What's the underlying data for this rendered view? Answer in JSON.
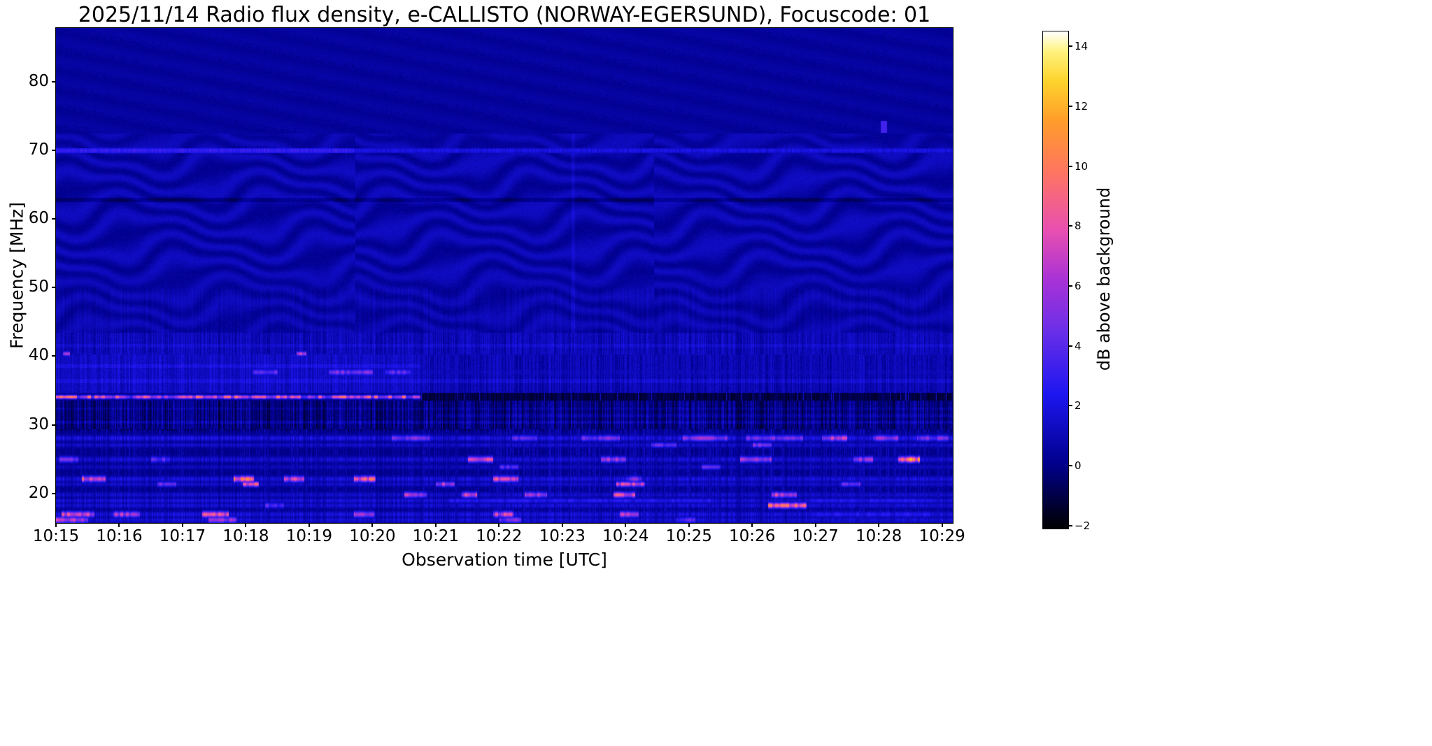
{
  "chart_data": {
    "type": "heatmap",
    "title": "2025/11/14  Radio flux density, e-CALLISTO (NORWAY-EGERSUND), Focuscode: 01",
    "xlabel": "Observation time [UTC]",
    "ylabel": "Frequency [MHz]",
    "colorbar_label": "dB above background",
    "x_tick_labels": [
      "10:15",
      "10:16",
      "10:17",
      "10:18",
      "10:19",
      "10:20",
      "10:21",
      "10:22",
      "10:23",
      "10:24",
      "10:25",
      "10:26",
      "10:27",
      "10:28",
      "10:29"
    ],
    "x_tick_minutes": [
      0,
      1,
      2,
      3,
      4,
      5,
      6,
      7,
      8,
      9,
      10,
      11,
      12,
      13,
      14
    ],
    "x_range_minutes": [
      0,
      14.17
    ],
    "y_ticks_mhz": [
      20,
      30,
      40,
      50,
      60,
      70,
      80
    ],
    "y_range_mhz": [
      15.7,
      87.8
    ],
    "colorbar_tick_values": [
      -2,
      0,
      2,
      4,
      6,
      8,
      10,
      12,
      14
    ],
    "colorbar_tick_labels": [
      "−2",
      "0",
      "2",
      "4",
      "6",
      "8",
      "10",
      "12",
      "14"
    ],
    "value_range_db": [
      -2.1,
      14.5
    ],
    "grid": false,
    "legend": "none",
    "colormap_stops": [
      [
        0.0,
        "#000000"
      ],
      [
        0.13,
        "#00008c"
      ],
      [
        0.27,
        "#1d16f0"
      ],
      [
        0.4,
        "#6c2fe8"
      ],
      [
        0.5,
        "#a832d6"
      ],
      [
        0.6,
        "#e84fb0"
      ],
      [
        0.72,
        "#ff765f"
      ],
      [
        0.82,
        "#ff9c2a"
      ],
      [
        0.9,
        "#fdd32c"
      ],
      [
        0.96,
        "#fff37e"
      ],
      [
        1.0,
        "#ffffff"
      ]
    ],
    "features": {
      "upper_quiet_min_mhz": 72.5,
      "ripple_min_mhz": 43.5,
      "texture_block_minutes": 4.72,
      "line_70mhz": {
        "f": 70.0,
        "strong_until_min": 4.7,
        "db_strong": 3.2,
        "db_weak": 2.3
      },
      "dark_line_mhz": 62.8,
      "rfi_34mhz": {
        "f": 34.1,
        "active_until_min": 5.75,
        "db_peak": 11.0
      },
      "comb_band_1": {
        "f_lo": 40.3,
        "f_hi": 43.5
      },
      "comb_band_2": {
        "f_lo": 34.65,
        "f_hi": 40.3,
        "bright_until_min": 5.75
      },
      "dark_band": {
        "f_lo": 29.4,
        "f_hi": 33.55
      },
      "blue_streak": {
        "t": 13.08,
        "f_lo": 72.6,
        "f_hi": 74.3,
        "db": 3.4
      },
      "faint_column_minute": 8.17,
      "rfi_lines": [
        {
          "f": 28.1,
          "w": 0.3,
          "base": 2.2,
          "segs": [
            [
              5.3,
              5.9,
              6
            ],
            [
              7.2,
              7.6,
              5
            ],
            [
              8.3,
              8.9,
              6
            ],
            [
              9.9,
              10.6,
              7
            ],
            [
              10.9,
              11.8,
              6
            ],
            [
              12.1,
              12.5,
              8
            ],
            [
              12.9,
              13.3,
              7
            ],
            [
              13.6,
              14.1,
              6
            ]
          ]
        },
        {
          "f": 27.1,
          "w": 0.25,
          "base": 1.6,
          "segs": [
            [
              9.4,
              9.8,
              5
            ],
            [
              11.0,
              11.3,
              6
            ]
          ]
        },
        {
          "f": 25.0,
          "w": 0.3,
          "base": 1.8,
          "segs": [
            [
              0.05,
              0.35,
              6
            ],
            [
              1.5,
              1.8,
              5
            ],
            [
              6.5,
              6.9,
              9
            ],
            [
              8.6,
              9.0,
              8
            ],
            [
              10.8,
              11.3,
              8
            ],
            [
              12.6,
              12.9,
              7
            ],
            [
              13.3,
              13.65,
              13
            ]
          ]
        },
        {
          "f": 23.9,
          "w": 0.25,
          "base": 1.2,
          "segs": [
            [
              7.0,
              7.3,
              5
            ],
            [
              10.2,
              10.5,
              6
            ]
          ]
        },
        {
          "f": 22.15,
          "w": 0.3,
          "base": 2.0,
          "segs": [
            [
              0.4,
              0.78,
              10
            ],
            [
              2.8,
              3.12,
              12
            ],
            [
              3.6,
              3.92,
              9
            ],
            [
              4.7,
              5.05,
              11
            ],
            [
              6.9,
              7.3,
              10
            ],
            [
              9.0,
              9.25,
              6
            ]
          ]
        },
        {
          "f": 21.4,
          "w": 0.25,
          "base": 1.6,
          "segs": [
            [
              1.6,
              1.9,
              6
            ],
            [
              2.95,
              3.2,
              10
            ],
            [
              6.0,
              6.3,
              8
            ],
            [
              8.85,
              9.3,
              9
            ],
            [
              12.4,
              12.7,
              6
            ]
          ]
        },
        {
          "f": 19.85,
          "w": 0.28,
          "base": 1.6,
          "segs": [
            [
              5.5,
              5.85,
              8
            ],
            [
              6.4,
              6.65,
              9
            ],
            [
              7.4,
              7.75,
              8
            ],
            [
              8.8,
              9.15,
              10
            ],
            [
              11.3,
              11.7,
              9
            ]
          ]
        },
        {
          "f": 19.0,
          "w": 0.25,
          "base": 2.0,
          "segs": [
            [
              6.2,
              10.4,
              3.2
            ],
            [
              11.9,
              13.9,
              3.0
            ]
          ]
        },
        {
          "f": 18.3,
          "w": 0.28,
          "base": 1.8,
          "segs": [
            [
              3.3,
              3.6,
              5
            ],
            [
              11.25,
              11.85,
              12
            ]
          ]
        },
        {
          "f": 17.0,
          "w": 0.3,
          "base": 2.0,
          "segs": [
            [
              0.08,
              0.6,
              9
            ],
            [
              0.9,
              1.32,
              8
            ],
            [
              2.3,
              2.72,
              10
            ],
            [
              4.7,
              5.02,
              8
            ],
            [
              6.9,
              7.22,
              9
            ],
            [
              8.9,
              9.2,
              8
            ],
            [
              12.0,
              13.8,
              3.2
            ]
          ]
        },
        {
          "f": 16.2,
          "w": 0.3,
          "base": 1.8,
          "segs": [
            [
              0.0,
              0.5,
              8
            ],
            [
              2.4,
              2.85,
              7
            ],
            [
              7.0,
              7.35,
              6
            ],
            [
              9.8,
              10.1,
              5
            ]
          ]
        },
        {
          "f": 40.4,
          "w": 0.22,
          "base": 0.8,
          "segs": [
            [
              0.1,
              0.22,
              7
            ],
            [
              3.8,
              3.95,
              8
            ]
          ]
        },
        {
          "f": 37.7,
          "w": 0.3,
          "base": 1.0,
          "segs": [
            [
              3.1,
              3.5,
              5
            ],
            [
              4.3,
              5.0,
              6
            ],
            [
              5.2,
              5.6,
              5
            ]
          ]
        }
      ]
    }
  }
}
